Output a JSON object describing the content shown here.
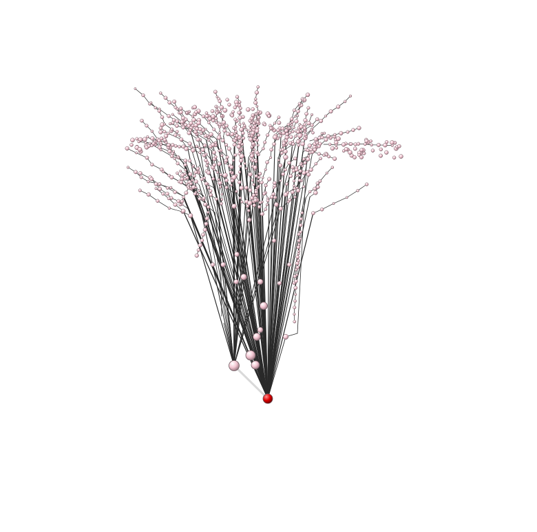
{
  "figure": {
    "kind": "3d-tree-graph",
    "background_color": "#ffffff",
    "edge_color": "#2a2a2a",
    "highlight_edge_color": "#d9d9d9",
    "root_node_color": "#e00000",
    "node_color": "#f3c6d2",
    "node_outline_color": "#6f5a60"
  }
}
